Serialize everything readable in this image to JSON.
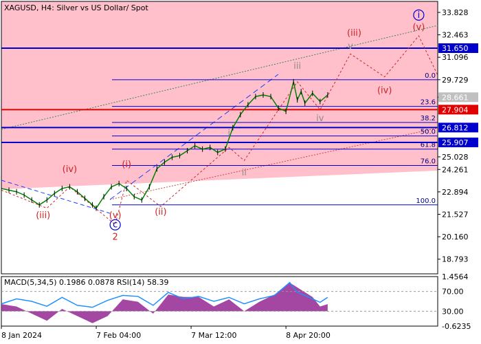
{
  "header": {
    "title": "XAGUSD, H4:  Silver vs US Dollar/ Spot"
  },
  "indicator": {
    "label": "MACD(5,34,5) 0.1986 0.0878 RSI(14) 58.39",
    "scale_labels": [
      "1.4564",
      "70.00",
      "30.00",
      "-0.6235"
    ]
  },
  "colors": {
    "zone_fill": "#ffc0cb",
    "price_line": "#008000",
    "blue_level": "#0000cd",
    "red_level": "#e00000",
    "fib_line": "#0000cd",
    "wave_red": "#cc2222",
    "wave_gray": "#8c8c8c",
    "macd_hist": "#993399",
    "rsi_line": "#1e90ff",
    "current_price_box": "#c0c0c0"
  },
  "chart_data": {
    "type": "line",
    "instrument": "XAGUSD",
    "timeframe": "H4",
    "y_axis": {
      "ticks": [
        33.828,
        32.463,
        31.096,
        29.729,
        28.661,
        25.028,
        24.261,
        22.894,
        21.527,
        20.16,
        18.793
      ],
      "tick_labels": [
        "33.828",
        "32.463",
        "31.096",
        "29.729",
        "28.661",
        "25.028",
        "24.261",
        "22.894",
        "21.527",
        "20.160",
        "18.793"
      ],
      "range": [
        17.9,
        34.5
      ]
    },
    "x_axis": {
      "tick_labels": [
        "8 Jan 2024",
        "7 Feb 04:00",
        "7 Mar 12:00",
        "8 Apr 20:00"
      ],
      "tick_index": [
        0,
        25,
        50,
        75
      ]
    },
    "price": {
      "name": "",
      "x": [
        0,
        2,
        4,
        6,
        8,
        10,
        12,
        14,
        16,
        18,
        20,
        22,
        24,
        25,
        27,
        29,
        31,
        33,
        35,
        37,
        39,
        41,
        43,
        45,
        47,
        49,
        51,
        53,
        55,
        57,
        59,
        61,
        63,
        65,
        67,
        69,
        71,
        73,
        75,
        77,
        78,
        79,
        80,
        82,
        84,
        86
      ],
      "y": [
        23.1,
        23.0,
        22.9,
        22.7,
        22.4,
        22.1,
        22.4,
        22.8,
        23.1,
        23.2,
        22.9,
        22.5,
        22.1,
        21.9,
        22.6,
        23.2,
        23.4,
        23.1,
        22.6,
        22.4,
        23.2,
        24.3,
        24.7,
        25.0,
        25.1,
        25.4,
        25.7,
        25.5,
        25.6,
        25.3,
        25.5,
        26.8,
        27.6,
        28.2,
        28.7,
        28.8,
        28.7,
        28.0,
        27.8,
        29.6,
        28.5,
        29.0,
        28.3,
        28.9,
        28.4,
        28.8
      ]
    },
    "levels": [
      {
        "value": 31.65,
        "label": "31.650",
        "color": "#0000cd"
      },
      {
        "value": 27.904,
        "label": "27.904",
        "color": "#e00000"
      },
      {
        "value": 26.812,
        "label": "26.812",
        "color": "#0000cd"
      },
      {
        "value": 25.907,
        "label": "25.907",
        "color": "#0000cd"
      }
    ],
    "current_price": {
      "value": 28.661,
      "label": "28.661"
    },
    "fibonacci": [
      {
        "ratio": "0.0",
        "value": 29.729
      },
      {
        "ratio": "23.6",
        "value": 28.1
      },
      {
        "ratio": "38.2",
        "value": 27.12
      },
      {
        "ratio": "50.0",
        "value": 26.3
      },
      {
        "ratio": "61.8",
        "value": 25.5
      },
      {
        "ratio": "76.0",
        "value": 24.5
      },
      {
        "ratio": "100.0",
        "value": 22.1
      }
    ],
    "wave_labels": [
      {
        "text": "(iv)",
        "x": 18,
        "y": 24.1,
        "color": "#cc2222",
        "circled": false
      },
      {
        "text": "(iii)",
        "x": 11,
        "y": 21.3,
        "color": "#cc2222",
        "circled": false
      },
      {
        "text": "(v)",
        "x": 30,
        "y": 21.3,
        "color": "#cc2222",
        "circled": false
      },
      {
        "text": "c",
        "x": 30,
        "y": 20.72,
        "color": "#0000cd",
        "circled": true
      },
      {
        "text": "2",
        "x": 30,
        "y": 19.97,
        "color": "#cc2222",
        "circled": false
      },
      {
        "text": "(i)",
        "x": 33,
        "y": 24.4,
        "color": "#cc2222",
        "circled": false
      },
      {
        "text": "(ii)",
        "x": 42,
        "y": 21.5,
        "color": "#cc2222",
        "circled": false
      },
      {
        "text": "i",
        "x": 60,
        "y": 26.3,
        "color": "#8c8c8c",
        "circled": false
      },
      {
        "text": "ii",
        "x": 64,
        "y": 23.9,
        "color": "#8c8c8c",
        "circled": false
      },
      {
        "text": "iii",
        "x": 78,
        "y": 30.4,
        "color": "#8c8c8c",
        "circled": false
      },
      {
        "text": "iv",
        "x": 84,
        "y": 27.2,
        "color": "#8c8c8c",
        "circled": false
      },
      {
        "text": "v",
        "x": 92,
        "y": 31.6,
        "color": "#8c8c8c",
        "circled": false
      },
      {
        "text": "(iii)",
        "x": 93,
        "y": 32.4,
        "color": "#cc2222",
        "circled": false
      },
      {
        "text": "(iv)",
        "x": 101,
        "y": 28.9,
        "color": "#cc2222",
        "circled": false
      },
      {
        "text": "(v)",
        "x": 110,
        "y": 32.75,
        "color": "#cc2222",
        "circled": false
      },
      {
        "text": "i",
        "x": 110,
        "y": 33.5,
        "color": "#0000cd",
        "circled": true
      }
    ],
    "wave_path": {
      "x": [
        0,
        12,
        18,
        30,
        33,
        42,
        60,
        64,
        78,
        84,
        92,
        101,
        110,
        115
      ],
      "y": [
        23.0,
        21.9,
        23.2,
        20.9,
        23.6,
        22.0,
        25.6,
        24.8,
        29.6,
        27.9,
        31.3,
        29.9,
        32.4,
        30.0
      ]
    },
    "indicator_data": {
      "rsi": {
        "x": [
          0,
          4,
          8,
          12,
          16,
          20,
          24,
          28,
          32,
          36,
          40,
          44,
          48,
          52,
          56,
          60,
          64,
          68,
          72,
          76,
          78,
          80,
          82,
          84,
          86
        ],
        "y": [
          45,
          55,
          50,
          40,
          58,
          42,
          38,
          52,
          62,
          60,
          42,
          68,
          55,
          60,
          50,
          58,
          45,
          55,
          62,
          88,
          68,
          62,
          55,
          48,
          58
        ]
      },
      "macd_hist": {
        "x": [
          0,
          4,
          8,
          12,
          16,
          20,
          24,
          28,
          32,
          36,
          40,
          44,
          48,
          52,
          56,
          60,
          64,
          68,
          72,
          76,
          78,
          80,
          82,
          84,
          86
        ],
        "y": [
          0.3,
          0.2,
          -0.1,
          -0.4,
          0.1,
          -0.2,
          -0.5,
          -0.2,
          0.5,
          0.4,
          -0.1,
          0.7,
          0.6,
          0.6,
          0.2,
          0.5,
          0.0,
          0.4,
          0.7,
          1.2,
          1.0,
          0.8,
          0.6,
          0.2,
          0.3
        ]
      },
      "macd_range": [
        -0.6235,
        1.4564
      ],
      "rsi_range": [
        0,
        100
      ]
    }
  }
}
